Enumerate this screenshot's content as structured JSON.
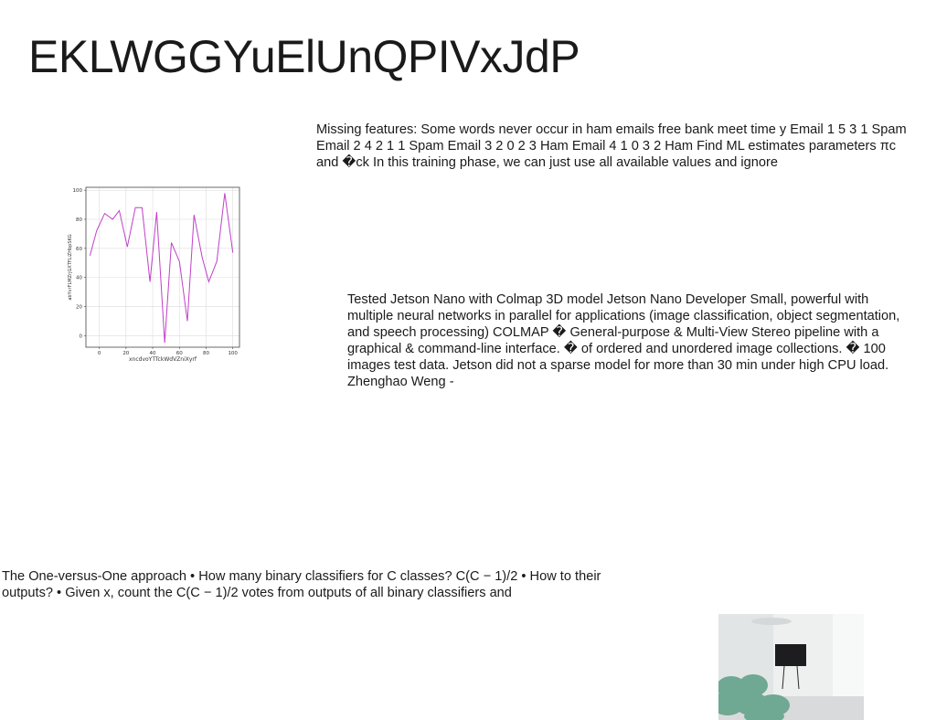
{
  "title": "EKLWGGYuElUnQPIVxJdP",
  "paragraphs": {
    "p1": "Missing features: Some words never occur in ham emails free bank meet time y Email 1 5 3 1 Spam Email 2 4 2 1 1 Spam Email 3 2 0 2 3 Ham Email 4 1 0 3 2 Ham Find ML estimates parameters πc and �ck In this training phase, we can just use all available values and ignore",
    "p2": "Tested Jetson Nano with Colmap 3D model Jetson Nano Developer Small, powerful with multiple neural networks in parallel for applications (image classification, object segmentation, and speech processing) COLMAP � General-purpose & Multi-View Stereo pipeline with a graphical & command-line interface. � of ordered and unordered image collections. � 100 images test data. Jetson did not a sparse model for more than 30 min under high CPU load. Zhenghao Weng -",
    "p3": "The One-versus-One approach • How many binary classifiers for C classes? C(C − 1)/2 • How to their outputs? • Given x, count the C(C − 1)/2 votes from outputs of all binary classifiers and"
  },
  "chart_data": {
    "type": "line",
    "title": "",
    "xlabel": "xncdvoYTTckWdVZniXyrf",
    "ylabel": "abYvrFLMZrjGXTFLiZHbpSKG",
    "xlim": [
      -10,
      105
    ],
    "ylim": [
      -8,
      102
    ],
    "xticks": [
      0,
      20,
      40,
      60,
      80,
      100
    ],
    "yticks": [
      0,
      20,
      40,
      60,
      80,
      100
    ],
    "grid": true,
    "color": "#c040c8",
    "series": [
      {
        "x": [
          -7,
          -2,
          4,
          10,
          15,
          21,
          27,
          32,
          38,
          43,
          49,
          54,
          60,
          66,
          71,
          77,
          82,
          88,
          94,
          100
        ],
        "y": [
          55,
          72,
          84,
          80,
          86,
          61,
          88,
          88,
          37,
          85,
          -5,
          64,
          51,
          10,
          83,
          54,
          37,
          51,
          98,
          57
        ]
      }
    ]
  },
  "photo": {
    "wall": "#eef0f0",
    "floor": "#d8dadb",
    "sofa": "#6fa893",
    "tv": "#1d1d1f"
  }
}
